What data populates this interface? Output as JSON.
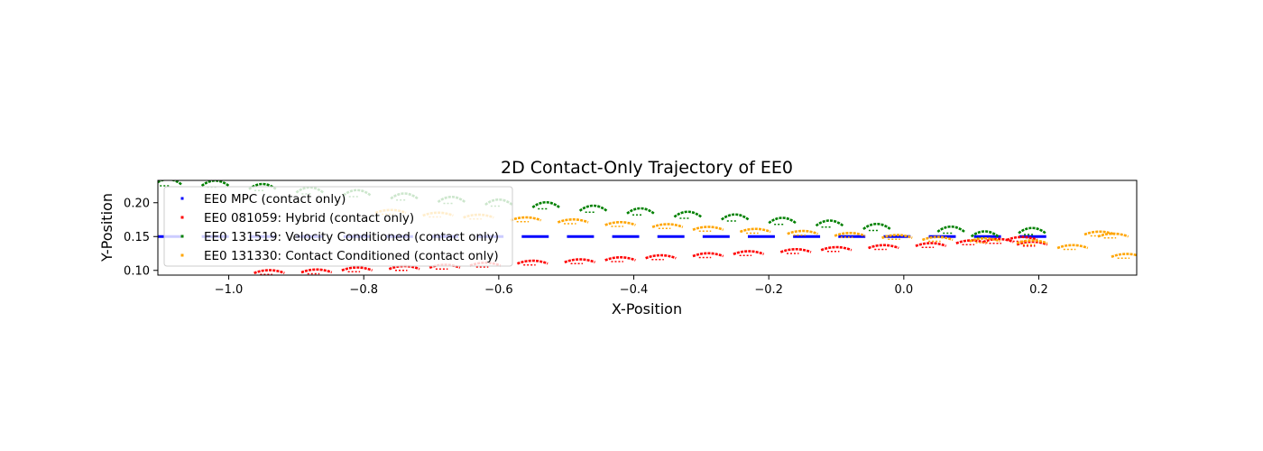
{
  "chart_data": {
    "type": "scatter",
    "title": "2D Contact-Only Trajectory of EE0",
    "xlabel": "X-Position",
    "ylabel": "Y-Position",
    "xlim": [
      -1.105,
      0.345
    ],
    "ylim": [
      0.093,
      0.233
    ],
    "x_ticks": [
      -1.0,
      -0.8,
      -0.6,
      -0.4,
      -0.2,
      0.0,
      0.2
    ],
    "x_tick_labels": [
      "−1.0",
      "−0.8",
      "−0.6",
      "−0.4",
      "−0.2",
      "0.0",
      "0.2"
    ],
    "y_ticks": [
      0.1,
      0.15,
      0.2
    ],
    "y_tick_labels": [
      "0.10",
      "0.15",
      "0.20"
    ],
    "grid": false,
    "legend_position": "upper-left",
    "series": [
      {
        "name": "EE0 MPC (contact only)",
        "color": "#0000ff",
        "shape": "dash",
        "segment_len": 0.04,
        "points": [
          [
            -1.09,
            0.15
          ],
          [
            -1.02,
            0.15
          ],
          [
            -0.95,
            0.15
          ],
          [
            -0.88,
            0.15
          ],
          [
            -0.81,
            0.15
          ],
          [
            -0.747,
            0.15
          ],
          [
            -0.68,
            0.15
          ],
          [
            -0.613,
            0.15
          ],
          [
            -0.546,
            0.15
          ],
          [
            -0.479,
            0.15
          ],
          [
            -0.412,
            0.15
          ],
          [
            -0.345,
            0.15
          ],
          [
            -0.278,
            0.15
          ],
          [
            -0.211,
            0.15
          ],
          [
            -0.144,
            0.15
          ],
          [
            -0.077,
            0.15
          ],
          [
            -0.01,
            0.15
          ],
          [
            0.057,
            0.15
          ],
          [
            0.124,
            0.15
          ],
          [
            0.191,
            0.15
          ]
        ]
      },
      {
        "name": "EE0 081059: Hybrid (contact only)",
        "color": "#ff0000",
        "shape": "flat-arc",
        "width": 0.045,
        "points": [
          [
            -0.94,
            0.098
          ],
          [
            -0.87,
            0.099
          ],
          [
            -0.81,
            0.102
          ],
          [
            -0.74,
            0.104
          ],
          [
            -0.68,
            0.106
          ],
          [
            -0.62,
            0.109
          ],
          [
            -0.55,
            0.112
          ],
          [
            -0.48,
            0.114
          ],
          [
            -0.42,
            0.117
          ],
          [
            -0.36,
            0.12
          ],
          [
            -0.29,
            0.123
          ],
          [
            -0.23,
            0.126
          ],
          [
            -0.16,
            0.129
          ],
          [
            -0.1,
            0.132
          ],
          [
            -0.03,
            0.135
          ],
          [
            0.04,
            0.138
          ],
          [
            0.1,
            0.142
          ],
          [
            0.14,
            0.144
          ],
          [
            0.175,
            0.147
          ],
          [
            0.19,
            0.14
          ]
        ]
      },
      {
        "name": "EE0 131519: Velocity Conditioned (contact only)",
        "color": "#008000",
        "shape": "arc",
        "width": 0.04,
        "points": [
          [
            -1.09,
            0.229
          ],
          [
            -1.02,
            0.227
          ],
          [
            -0.95,
            0.222
          ],
          [
            -0.88,
            0.217
          ],
          [
            -0.81,
            0.213
          ],
          [
            -0.74,
            0.208
          ],
          [
            -0.67,
            0.203
          ],
          [
            -0.6,
            0.199
          ],
          [
            -0.53,
            0.195
          ],
          [
            -0.46,
            0.19
          ],
          [
            -0.39,
            0.186
          ],
          [
            -0.32,
            0.181
          ],
          [
            -0.25,
            0.177
          ],
          [
            -0.18,
            0.172
          ],
          [
            -0.11,
            0.168
          ],
          [
            -0.04,
            0.163
          ],
          [
            0.07,
            0.159
          ],
          [
            0.12,
            0.152
          ],
          [
            0.19,
            0.157
          ]
        ]
      },
      {
        "name": "EE0 131330: Contact Conditioned (contact only)",
        "color": "#ffa500",
        "shape": "flat-arc",
        "width": 0.045,
        "points": [
          [
            -0.76,
            0.187
          ],
          [
            -0.69,
            0.183
          ],
          [
            -0.63,
            0.18
          ],
          [
            -0.56,
            0.176
          ],
          [
            -0.49,
            0.173
          ],
          [
            -0.42,
            0.169
          ],
          [
            -0.35,
            0.166
          ],
          [
            -0.29,
            0.162
          ],
          [
            -0.22,
            0.159
          ],
          [
            -0.15,
            0.156
          ],
          [
            -0.08,
            0.153
          ],
          [
            -0.01,
            0.15
          ],
          [
            0.05,
            0.147
          ],
          [
            0.12,
            0.145
          ],
          [
            0.19,
            0.142
          ],
          [
            0.25,
            0.135
          ],
          [
            0.29,
            0.155
          ],
          [
            0.31,
            0.152
          ],
          [
            0.33,
            0.122
          ]
        ]
      }
    ]
  }
}
